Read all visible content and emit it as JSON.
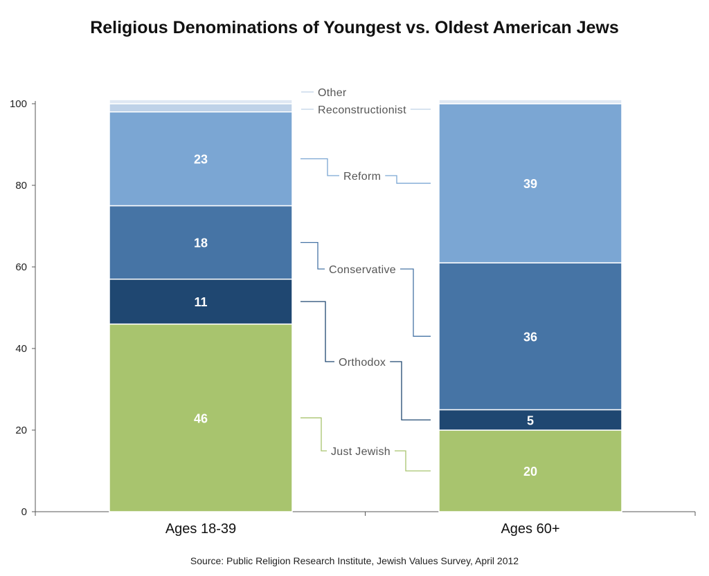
{
  "chart_data": {
    "type": "bar",
    "stacked": true,
    "title": "Religious Denominations of Youngest vs. Oldest American Jews",
    "categories": [
      "Ages 18-39",
      "Ages 60+"
    ],
    "ylim": [
      0,
      100
    ],
    "yticks": [
      0,
      20,
      40,
      60,
      80,
      100
    ],
    "grid": false,
    "legend": "labels between bars",
    "series": [
      {
        "name": "Just Jewish",
        "values": [
          46,
          20
        ],
        "color": "#a8c46e",
        "labels": [
          "46",
          "20"
        ]
      },
      {
        "name": "Orthodox",
        "values": [
          11,
          5
        ],
        "color": "#1f4771",
        "labels": [
          "11",
          "5"
        ]
      },
      {
        "name": "Conservative",
        "values": [
          18,
          36
        ],
        "color": "#4674a5",
        "labels": [
          "18",
          "36"
        ]
      },
      {
        "name": "Reform",
        "values": [
          23,
          39
        ],
        "color": "#7ba6d3",
        "labels": [
          "23",
          "39"
        ]
      },
      {
        "name": "Reconstructionist",
        "values": [
          2,
          0
        ],
        "color": "#bfd2e8",
        "labels": [
          "",
          ""
        ]
      },
      {
        "name": "Other",
        "values": [
          1,
          1
        ],
        "color": "#dfe8f3",
        "labels": [
          "",
          ""
        ]
      }
    ],
    "source": "Source: Public Religion Research Institute, Jewish Values Survey, April 2012"
  }
}
